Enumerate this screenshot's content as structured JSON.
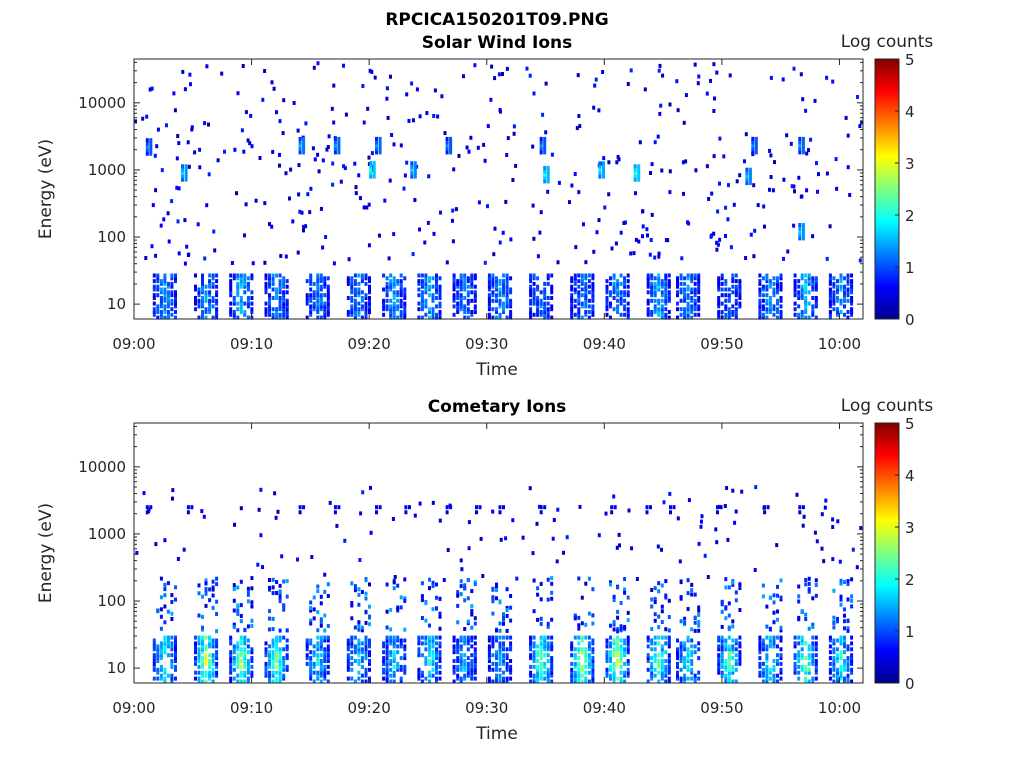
{
  "figure_title": "RPCICA150201T09.PNG",
  "chart_data": [
    {
      "type": "heatmap",
      "title": "Solar Wind Ions",
      "xlabel": "Time",
      "ylabel": "Energy (eV)",
      "x_ticks": [
        "09:00",
        "09:10",
        "09:20",
        "09:30",
        "09:40",
        "09:50",
        "10:00"
      ],
      "x_range_minutes": [
        0,
        62
      ],
      "y_scale": "log",
      "y_ticks": [
        "10",
        "100",
        "1000",
        "10000"
      ],
      "y_range": [
        6,
        45000
      ],
      "colorbar": {
        "label": "Log counts",
        "ticks": [
          "0",
          "1",
          "2",
          "3",
          "4",
          "5"
        ],
        "range": [
          0,
          5
        ],
        "colormap": "jet"
      },
      "bursts_minute": [
        2.5,
        6,
        9,
        12,
        15.5,
        19,
        22,
        25,
        28,
        31,
        34.5,
        38,
        41,
        44.5,
        47,
        50.5,
        54,
        57,
        60
      ],
      "low_energy_band_eV": [
        6,
        28
      ],
      "high_energy_patches": [
        {
          "minute": 1,
          "energy": 2200,
          "value": 1.3
        },
        {
          "minute": 4,
          "energy": 900,
          "value": 1.7
        },
        {
          "minute": 14,
          "energy": 2300,
          "value": 1.5
        },
        {
          "minute": 17,
          "energy": 2300,
          "value": 1.4
        },
        {
          "minute": 20,
          "energy": 1000,
          "value": 2.0
        },
        {
          "minute": 20.5,
          "energy": 2300,
          "value": 1.4
        },
        {
          "minute": 23.5,
          "energy": 1000,
          "value": 1.6
        },
        {
          "minute": 26.5,
          "energy": 2300,
          "value": 1.3
        },
        {
          "minute": 34.5,
          "energy": 2300,
          "value": 1.3
        },
        {
          "minute": 34.8,
          "energy": 850,
          "value": 1.9
        },
        {
          "minute": 39.5,
          "energy": 1000,
          "value": 1.8
        },
        {
          "minute": 42.5,
          "energy": 900,
          "value": 2.0
        },
        {
          "minute": 52,
          "energy": 800,
          "value": 1.6
        },
        {
          "minute": 52.5,
          "energy": 2300,
          "value": 1.3
        },
        {
          "minute": 56.5,
          "energy": 2300,
          "value": 1.4
        },
        {
          "minute": 56.5,
          "energy": 120,
          "value": 1.7
        }
      ]
    },
    {
      "type": "heatmap",
      "title": "Cometary Ions",
      "xlabel": "Time",
      "ylabel": "Energy (eV)",
      "x_ticks": [
        "09:00",
        "09:10",
        "09:20",
        "09:30",
        "09:40",
        "09:50",
        "10:00"
      ],
      "x_range_minutes": [
        0,
        62
      ],
      "y_scale": "log",
      "y_ticks": [
        "10",
        "100",
        "1000",
        "10000"
      ],
      "y_range": [
        6,
        45000
      ],
      "colorbar": {
        "label": "Log counts",
        "ticks": [
          "0",
          "1",
          "2",
          "3",
          "4",
          "5"
        ],
        "range": [
          0,
          5
        ],
        "colormap": "jet"
      },
      "bursts_minute": [
        2.5,
        6,
        9,
        12,
        15.5,
        19,
        22,
        25,
        28,
        31,
        34.5,
        38,
        41,
        44.5,
        47,
        50.5,
        54,
        57,
        60
      ],
      "burst_peak_value": [
        2.0,
        2.9,
        2.6,
        2.5,
        1.8,
        1.7,
        1.6,
        2.0,
        1.5,
        1.4,
        2.4,
        2.8,
        3.0,
        2.4,
        1.8,
        2.3,
        2.0,
        2.5,
        2.0
      ],
      "low_energy_band_eV": [
        6,
        30
      ],
      "mid_energy_band_eV": [
        35,
        220
      ],
      "sparse_2500eV_minutes": [
        1,
        4.5,
        14,
        17,
        20.5,
        23,
        26.5,
        29,
        31,
        34.5,
        40.5,
        43.5,
        45.5,
        49.5,
        53.5,
        56.5
      ]
    }
  ]
}
